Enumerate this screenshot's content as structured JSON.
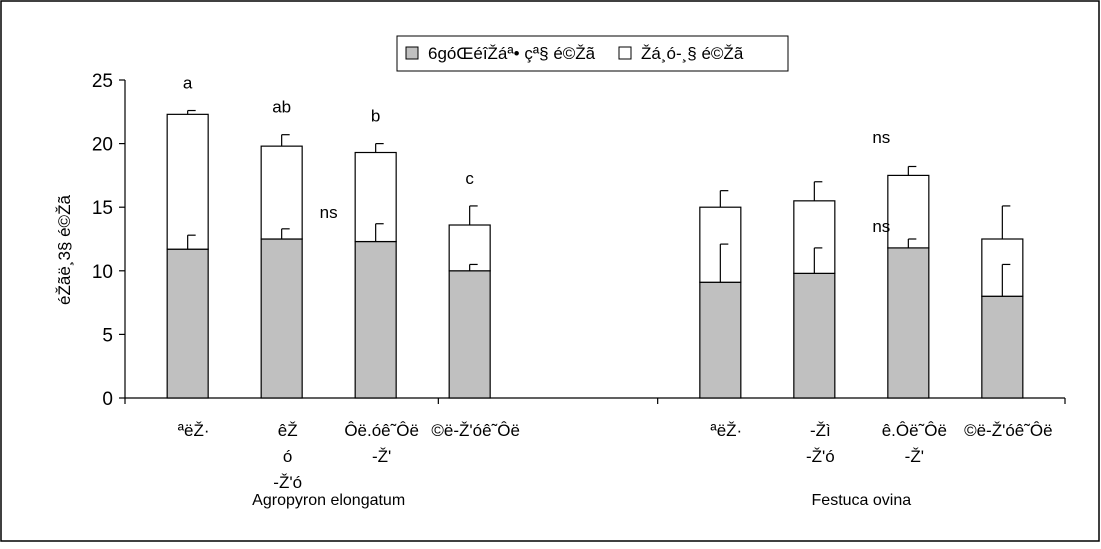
{
  "chart_data": {
    "type": "bar",
    "stacked": true,
    "ylabel": "éŽãë¸3§ é©Žã",
    "ylim": [
      0,
      25
    ],
    "yticks": [
      0,
      5,
      10,
      15,
      20,
      25
    ],
    "legend": {
      "placement": "top-center",
      "entries": [
        {
          "label": "6góŒéîŽáª• çª§ é©Žã",
          "color": "#c0c0c0"
        },
        {
          "label": "Žá¸ó-¸§ é©Žã",
          "color": "#ffffff"
        }
      ]
    },
    "groups": [
      {
        "name": "Agropyron elongatum",
        "categories": [
          {
            "label": "ªëŽ·",
            "lower": 11.7,
            "lower_err": 1.1,
            "total": 22.3,
            "total_err": 0.3,
            "sig": "a"
          },
          {
            "label": "êŽ ó -Ž'ó",
            "lower": 12.5,
            "lower_err": 0.8,
            "total": 19.8,
            "total_err": 0.9,
            "sig": "ab"
          },
          {
            "label": "Ôë.óê˜Ôë -Ž'",
            "lower": 12.3,
            "lower_err": 1.4,
            "total": 19.3,
            "total_err": 0.7,
            "sig": "b"
          },
          {
            "label": "©ë-Ž'óê˜Ôë",
            "lower": 10.0,
            "lower_err": 0.5,
            "total": 13.6,
            "total_err": 1.5,
            "sig": "c"
          }
        ],
        "lower_sig": "ns"
      },
      {
        "name": "Festuca ovina",
        "categories": [
          {
            "label": "ªëŽ·",
            "lower": 9.1,
            "lower_err": 3.0,
            "total": 15.0,
            "total_err": 1.3
          },
          {
            "label": "-Žì -Ž'ó",
            "lower": 9.8,
            "lower_err": 2.0,
            "total": 15.5,
            "total_err": 1.5
          },
          {
            "label": "ê.Ôë˜Ôë -Ž'",
            "lower": 11.8,
            "lower_err": 0.7,
            "total": 17.5,
            "total_err": 0.7
          },
          {
            "label": "©ë-Ž'óê˜Ôë",
            "lower": 8.0,
            "lower_err": 2.5,
            "total": 12.5,
            "total_err": 2.6
          }
        ],
        "upper_sig": "ns",
        "lower_sig": "ns"
      }
    ]
  }
}
